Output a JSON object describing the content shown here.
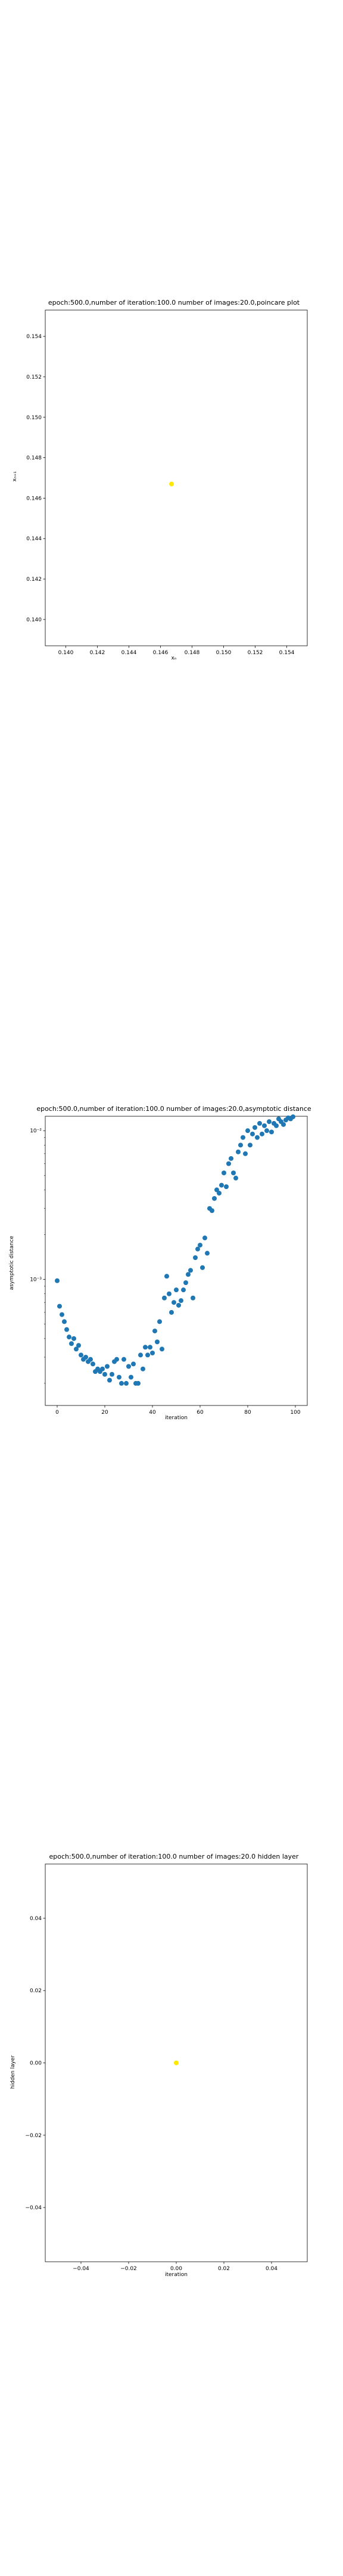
{
  "chart_data": [
    {
      "type": "scatter",
      "title": "epoch:500.0,number of iteration:100.0 number of images:20.0,poincare plot",
      "xlabel": "xₙ",
      "ylabel": "xₙ₊₁",
      "xlim": [
        0.1387,
        0.1553
      ],
      "ylim": [
        0.1387,
        0.1553
      ],
      "x_scale": "linear",
      "y_scale": "linear",
      "xticks": [
        0.14,
        0.142,
        0.144,
        0.146,
        0.148,
        0.15,
        0.152,
        0.154
      ],
      "xtick_labels": [
        "0.140",
        "0.142",
        "0.144",
        "0.146",
        "0.148",
        "0.150",
        "0.152",
        "0.154"
      ],
      "yticks": [
        0.14,
        0.142,
        0.144,
        0.146,
        0.148,
        0.15,
        0.152,
        0.154
      ],
      "ytick_labels": [
        "0.140",
        "0.142",
        "0.144",
        "0.146",
        "0.148",
        "0.150",
        "0.152",
        "0.154"
      ],
      "grid": false,
      "marker_color": "#ffe800",
      "points": [
        {
          "x": 0.1467,
          "y": 0.1467
        }
      ]
    },
    {
      "type": "scatter",
      "title": "epoch:500.0,number of iteration:100.0  number of images:20.0,asymptotic distance",
      "xlabel": "iteration",
      "ylabel": "asymptotic distance",
      "xlim": [
        -5,
        105
      ],
      "y_scale": "log",
      "ylim": [
        0.000142,
        0.0125
      ],
      "xticks": [
        0,
        20,
        40,
        60,
        80,
        100
      ],
      "xtick_labels": [
        "0",
        "20",
        "40",
        "60",
        "80",
        "100"
      ],
      "yticks": [
        0.001,
        0.01
      ],
      "ytick_labels": [
        "10⁻³",
        "10⁻²"
      ],
      "grid": false,
      "marker_color": "#1f77b4",
      "x": [
        0,
        1,
        2,
        3,
        4,
        5,
        6,
        7,
        8,
        9,
        10,
        11,
        12,
        13,
        14,
        15,
        16,
        17,
        18,
        19,
        20,
        21,
        22,
        23,
        24,
        25,
        26,
        27,
        28,
        29,
        30,
        31,
        32,
        33,
        34,
        35,
        36,
        37,
        38,
        39,
        40,
        41,
        42,
        43,
        44,
        45,
        46,
        47,
        48,
        49,
        50,
        51,
        52,
        53,
        54,
        55,
        56,
        57,
        58,
        59,
        60,
        61,
        62,
        63,
        64,
        65,
        66,
        67,
        68,
        69,
        70,
        71,
        72,
        73,
        74,
        75,
        76,
        77,
        78,
        79,
        80,
        81,
        82,
        83,
        84,
        85,
        86,
        87,
        88,
        89,
        90,
        91,
        92,
        93,
        94,
        95,
        96,
        97,
        98,
        99
      ],
      "y": [
        0.00098,
        0.00066,
        0.00058,
        0.00052,
        0.00046,
        0.00041,
        0.00037,
        0.0004,
        0.00034,
        0.00036,
        0.00031,
        0.00029,
        0.0003,
        0.00028,
        0.00029,
        0.00027,
        0.00024,
        0.00025,
        0.00024,
        0.00025,
        0.00023,
        0.00026,
        0.00021,
        0.00023,
        0.00028,
        0.00029,
        0.00022,
        0.0002,
        0.00029,
        0.0002,
        0.00026,
        0.00022,
        0.00027,
        0.0002,
        0.0002,
        0.00031,
        0.00025,
        0.00035,
        0.00031,
        0.00035,
        0.00032,
        0.00045,
        0.00038,
        0.00052,
        0.00034,
        0.00075,
        0.00105,
        0.0008,
        0.0006,
        0.0007,
        0.00085,
        0.00067,
        0.00072,
        0.00085,
        0.00095,
        0.00108,
        0.00115,
        0.00075,
        0.0014,
        0.0016,
        0.0017,
        0.0012,
        0.0019,
        0.0015,
        0.003,
        0.0029,
        0.0035,
        0.004,
        0.0038,
        0.0043,
        0.0052,
        0.0042,
        0.006,
        0.0065,
        0.0052,
        0.0048,
        0.0072,
        0.008,
        0.009,
        0.007,
        0.01,
        0.008,
        0.0095,
        0.0105,
        0.009,
        0.0112,
        0.0095,
        0.0108,
        0.01,
        0.0115,
        0.0098,
        0.0112,
        0.0108,
        0.012,
        0.0115,
        0.011,
        0.0118,
        0.0122,
        0.012,
        0.0124
      ]
    },
    {
      "type": "scatter",
      "title": "epoch:500.0,number of iteration:100.0  number of images:20.0 hidden layer",
      "xlabel": "iteration",
      "ylabel": "hidden layer",
      "xlim": [
        -0.055,
        0.055
      ],
      "ylim": [
        -0.055,
        0.055
      ],
      "x_scale": "linear",
      "y_scale": "linear",
      "xticks": [
        -0.04,
        -0.02,
        0.0,
        0.02,
        0.04
      ],
      "xtick_labels": [
        "−0.04",
        "−0.02",
        "0.00",
        "0.02",
        "0.04"
      ],
      "yticks": [
        -0.04,
        -0.02,
        0.0,
        0.02,
        0.04
      ],
      "ytick_labels": [
        "−0.04",
        "−0.02",
        "0.00",
        "0.02",
        "0.04"
      ],
      "grid": false,
      "marker_color": "#ffe800",
      "points": [
        {
          "x": 0.0,
          "y": 0.0
        }
      ]
    }
  ]
}
